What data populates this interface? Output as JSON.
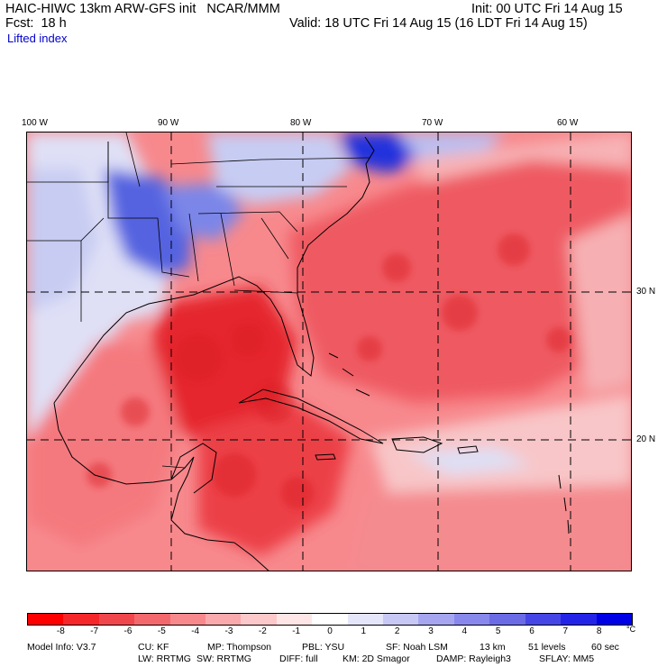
{
  "header": {
    "model_line": "HAIC-HIWC 13km ARW-GFS init   NCAR/MMM",
    "init_line": "Init: 00 UTC Fri 14 Aug 15",
    "fcst_line": "Fcst:  18 h",
    "valid_line": "Valid: 18 UTC Fri 14 Aug 15 (16 LDT Fri 14 Aug 15)",
    "field_name": "Lifted index"
  },
  "map": {
    "lon_labels": [
      "100 W",
      "90 W",
      "80 W",
      "70 W",
      "60 W"
    ],
    "lat_labels": [
      "30 N",
      "20 N"
    ],
    "colors": {
      "ocean_unstable": "#f2595e",
      "deep_unstable": "#e8232b",
      "stable_light": "#d6dcf5",
      "stable_dark": "#2f3fdc",
      "gridline": "#000000"
    }
  },
  "colorbar": {
    "colors": [
      "#ff0000",
      "#f5272b",
      "#f0474d",
      "#f3686d",
      "#f7898d",
      "#faa9ac",
      "#fcc8ca",
      "#ffe6e6",
      "#ffffff",
      "#e6e6fa",
      "#c8c8f5",
      "#a6a6f0",
      "#8888ec",
      "#6b6be6",
      "#4646e6",
      "#2424e8",
      "#0000e6"
    ],
    "tick_labels": [
      "-8",
      "-7",
      "-6",
      "-5",
      "-4",
      "-3",
      "-2",
      "-1",
      "0",
      "1",
      "2",
      "3",
      "4",
      "5",
      "6",
      "7",
      "8"
    ],
    "unit": "°C"
  },
  "footer": {
    "line1": [
      "Model Info: V3.7",
      "CU: KF",
      "MP: Thompson",
      "PBL: YSU",
      "SF: Noah LSM",
      "13 km",
      "51 levels",
      "60 sec"
    ],
    "line2": [
      "LW: RRTMG",
      "SW: RRTMG",
      "DIFF: full",
      "KM: 2D Smagor",
      "DAMP: Rayleigh3",
      "SFLAY: MM5"
    ]
  }
}
